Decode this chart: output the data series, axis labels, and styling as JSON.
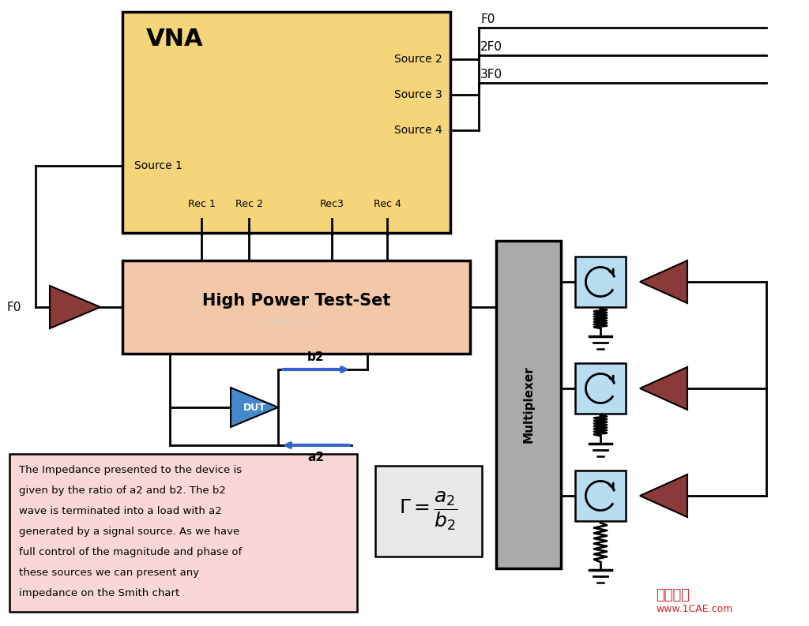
{
  "bg_color": "#ffffff",
  "vna_color": "#F5D57A",
  "hpts_color": "#F2C8A8",
  "mux_color": "#AAAAAA",
  "text_box_color": "#FAD7D7",
  "formula_box_color": "#E8E8E8",
  "circ_color": "#B8DCF0",
  "amp_color": "#8B3A3A",
  "dut_color": "#4488CC",
  "arrow_blue": "#3366CC",
  "watermark": "1CAE.COM",
  "brand_cn": "仿真在线",
  "brand_url": "www.1CAE.com",
  "text_content": "The Impedance presented to the device is\ngiven by the ratio of a2 and b2. The b2\nwave is terminated into a load with a2\ngenerated by a signal source. As we have\nfull control of the magnitude and phase of\nthese sources we can present any\nimpedance on the Smith chart",
  "freqs": [
    "F0",
    "2F0",
    "3F0"
  ],
  "recs": [
    "Rec 1",
    "Rec 2",
    "Rec3",
    "Rec 4"
  ],
  "sources_right": [
    "Source 2",
    "Source 3",
    "Source 4"
  ]
}
